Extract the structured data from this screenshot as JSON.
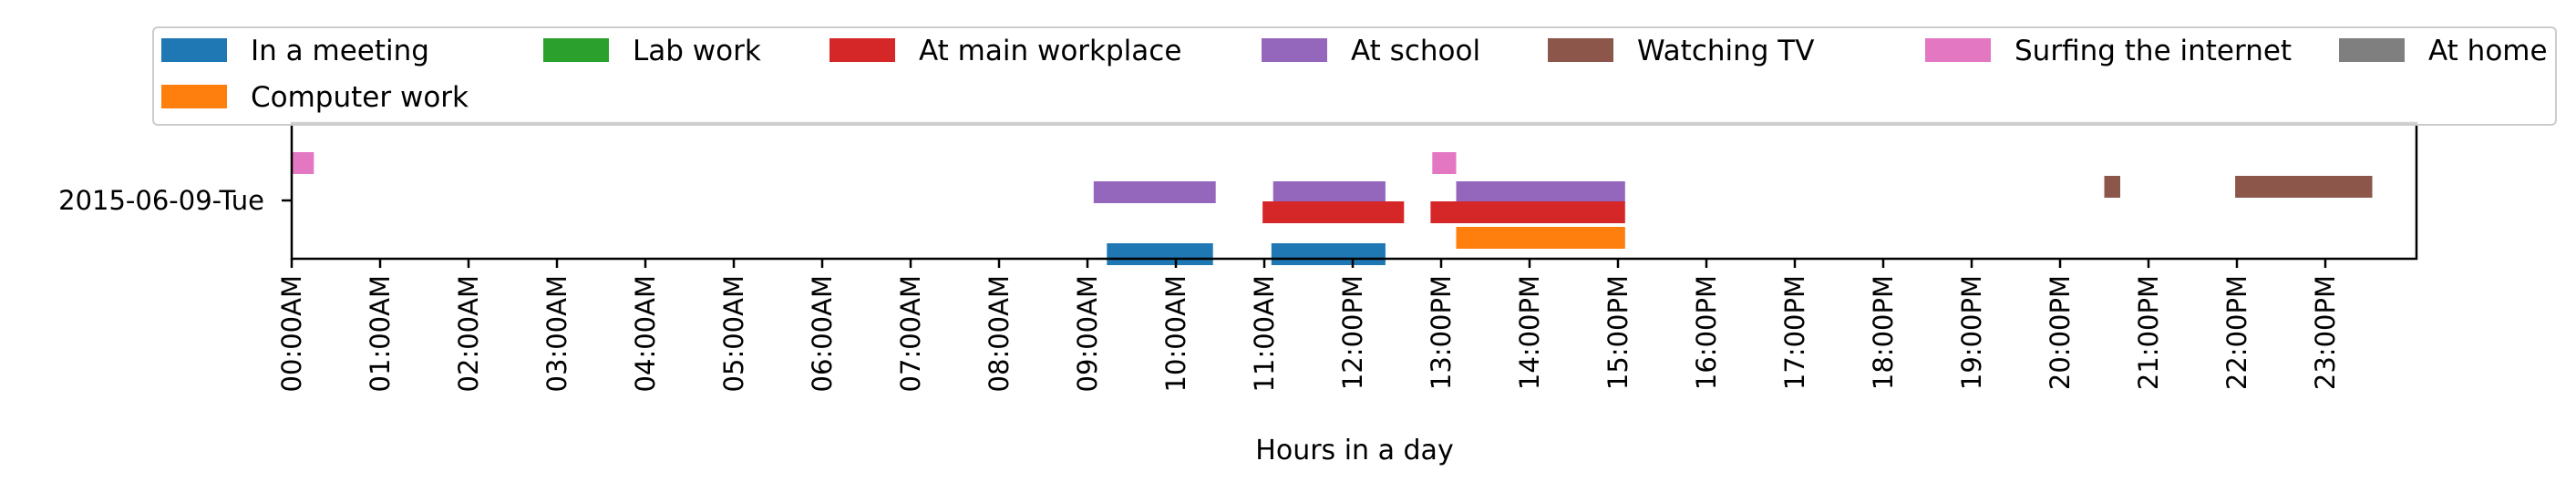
{
  "chart_data": {
    "type": "timeline",
    "title": "",
    "xlabel": "Hours in a day",
    "ylabel": "",
    "xlim": [
      0,
      24
    ],
    "x_ticks": [
      {
        "value": 0,
        "label": "00:00AM"
      },
      {
        "value": 1,
        "label": "01:00AM"
      },
      {
        "value": 2,
        "label": "02:00AM"
      },
      {
        "value": 3,
        "label": "03:00AM"
      },
      {
        "value": 4,
        "label": "04:00AM"
      },
      {
        "value": 5,
        "label": "05:00AM"
      },
      {
        "value": 6,
        "label": "06:00AM"
      },
      {
        "value": 7,
        "label": "07:00AM"
      },
      {
        "value": 8,
        "label": "08:00AM"
      },
      {
        "value": 9,
        "label": "09:00AM"
      },
      {
        "value": 10,
        "label": "10:00AM"
      },
      {
        "value": 11,
        "label": "11:00AM"
      },
      {
        "value": 12,
        "label": "12:00PM"
      },
      {
        "value": 13,
        "label": "13:00PM"
      },
      {
        "value": 14,
        "label": "14:00PM"
      },
      {
        "value": 15,
        "label": "15:00PM"
      },
      {
        "value": 16,
        "label": "16:00PM"
      },
      {
        "value": 17,
        "label": "17:00PM"
      },
      {
        "value": 18,
        "label": "18:00PM"
      },
      {
        "value": 19,
        "label": "19:00PM"
      },
      {
        "value": 20,
        "label": "20:00PM"
      },
      {
        "value": 21,
        "label": "21:00PM"
      },
      {
        "value": 22,
        "label": "22:00PM"
      },
      {
        "value": 23,
        "label": "23:00PM"
      }
    ],
    "y_category": "2015-06-09-Tue",
    "legend_position": "top",
    "grid": false,
    "series": [
      {
        "name": "In a meeting",
        "color": "#1f77b4",
        "intervals": [
          [
            9.22,
            10.42
          ],
          [
            11.08,
            12.37
          ]
        ]
      },
      {
        "name": "Lab work",
        "color": "#2ca02c",
        "intervals": []
      },
      {
        "name": "At main workplace",
        "color": "#d62728",
        "intervals": [
          [
            10.98,
            12.58
          ],
          [
            12.88,
            15.08
          ]
        ]
      },
      {
        "name": "At school",
        "color": "#9467bd",
        "intervals": [
          [
            9.07,
            10.45
          ],
          [
            11.1,
            12.37
          ],
          [
            13.17,
            15.08
          ]
        ]
      },
      {
        "name": "Watching TV",
        "color": "#8c564b",
        "intervals": [
          [
            20.5,
            20.68
          ],
          [
            21.98,
            23.53
          ]
        ]
      },
      {
        "name": "Surfing the internet",
        "color": "#e377c2",
        "intervals": [
          [
            0.0,
            0.25
          ],
          [
            12.9,
            13.17
          ]
        ]
      },
      {
        "name": "At home",
        "color": "#7f7f7f",
        "intervals": []
      },
      {
        "name": "Computer work",
        "color": "#ff7f0e",
        "intervals": [
          [
            13.17,
            15.08
          ]
        ]
      }
    ],
    "track_order": [
      "Surfing the internet",
      "Watching TV",
      "At school",
      "At main workplace",
      "Computer work",
      "In a meeting"
    ]
  }
}
